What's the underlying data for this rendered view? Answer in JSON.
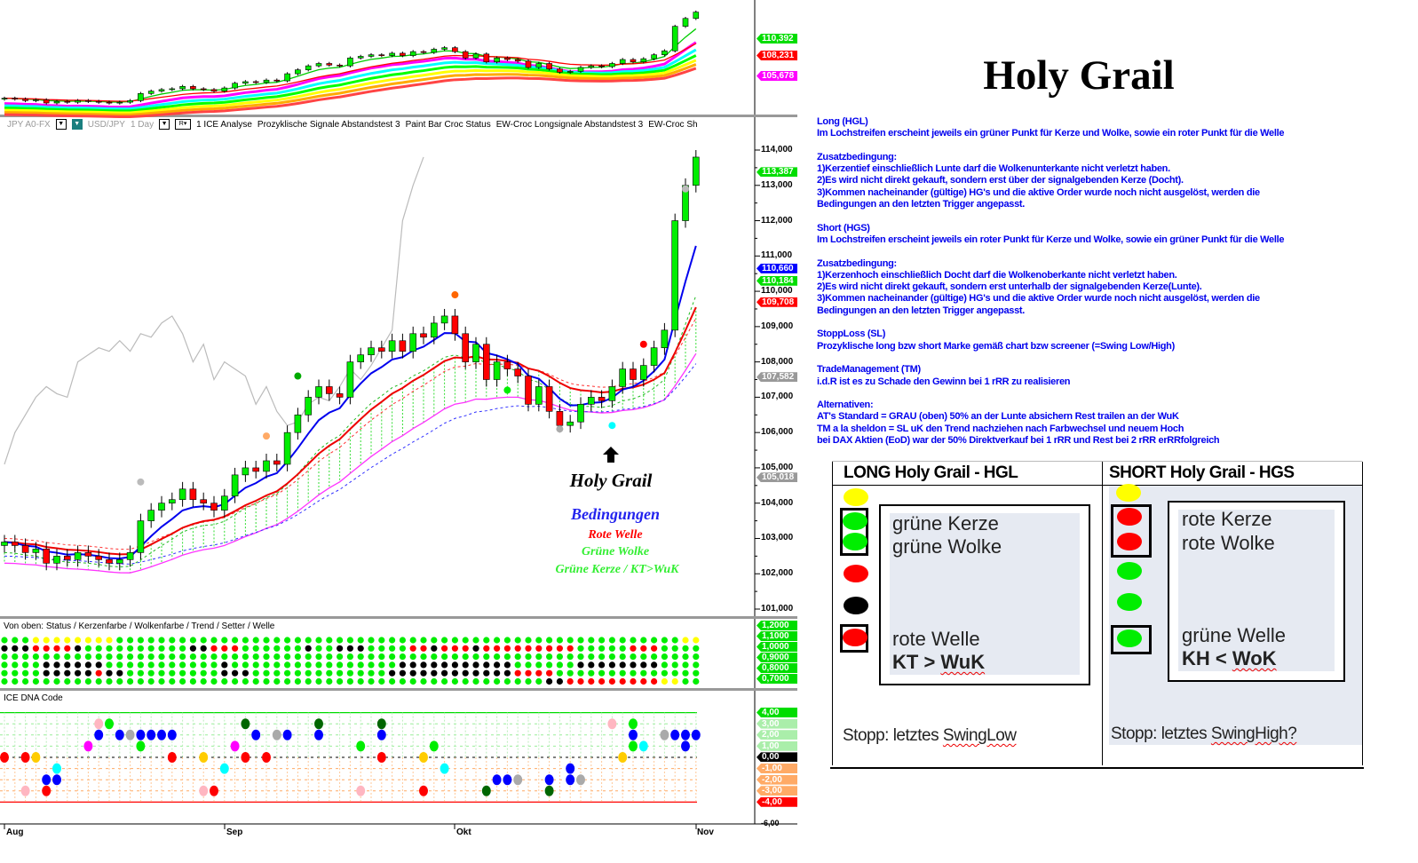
{
  "toolbar": {
    "symbol": "JPY A0-FX",
    "pair": "USD/JPY",
    "interval": "1 Day",
    "r_button": "R",
    "indicators": [
      "1 ICE Analyse",
      "Prozyklische Signale Abstandstest 3",
      "Paint Bar Croc Status",
      "EW-Croc Longsignale Abstandstest 3",
      "EW-Croc Sh"
    ]
  },
  "top_panel": {
    "tags": [
      {
        "label": "110,392",
        "color": "#00dd00"
      },
      {
        "label": "108,231",
        "color": "#ff0000"
      },
      {
        "label": "105,678",
        "color": "#ff00ff"
      }
    ]
  },
  "price_axis": {
    "ticks": [
      "114,000",
      "113,000",
      "112,000",
      "111,000",
      "110,000",
      "109,000",
      "108,000",
      "107,000",
      "106,000",
      "105,000",
      "104,000",
      "103,000",
      "102,000",
      "101,000"
    ],
    "tags": [
      {
        "label": "113,387",
        "color": "#00dd00",
        "value": 113.387
      },
      {
        "label": "110,660",
        "color": "#0000ff",
        "value": 110.66
      },
      {
        "label": "110,184",
        "color": "#00dd00",
        "value": 110.184
      },
      {
        "label": "109,708",
        "color": "#ff0000",
        "value": 109.708
      },
      {
        "label": "107,582",
        "color": "#999999",
        "value": 107.582
      },
      {
        "label": "105,018",
        "color": "#999999",
        "value": 105.018
      }
    ]
  },
  "annotations": {
    "holy_grail": "Holy Grail",
    "bedingungen": "Bedingungen",
    "rote_welle": "Rote Welle",
    "gruene_wolke": "Grüne Wolke",
    "gruene_kerze": "Grüne Kerze / KT>WuK"
  },
  "status_panel": {
    "label": "Von oben: Status / Kerzenfarbe / Wolkenfarbe / Trend / Setter / Welle",
    "tags": [
      "1,2000",
      "1,1000",
      "1,0000",
      "0,9000",
      "0,8000",
      "0,7000"
    ],
    "rows": [
      "gggyyyyyyyyggggggggggggggggggggggggggggggggggggggggggggggggggggggyyg",
      "kkkrrrrkggggggggggkkrrrggggggkggkkkggggrrkrrrkrrrrrrrrrgggggrrrggggg",
      "ggggggggggggggggggggggggggggggggggggggggggggggggggggggggggggggggggg",
      "ggggkkkkkkgggggggggggkggggggggggggggggkkkkkkkkkkkggggggkkkkkkkkgggg",
      "ggggkkkkkrkkgggggggggkkkgggggggggggggkkkkkkkkkkkkrrrrgggggggggggggg",
      "ggggggggggggggggggggggggggggggggggggggggggggggggggggkkrrrrrrrrryygg"
    ],
    "colors": {
      "g": "#00ee00",
      "k": "#000000",
      "r": "#ff0000",
      "y": "#ffff00"
    }
  },
  "dna_panel": {
    "label": "ICE DNA Code",
    "tags": [
      {
        "label": "4,00",
        "color": "#00dd00"
      },
      {
        "label": "3,00",
        "color": "#aaeeaa"
      },
      {
        "label": "2,00",
        "color": "#aaeeaa"
      },
      {
        "label": "1,00",
        "color": "#aaeeaa"
      },
      {
        "label": "0,00",
        "color": "#000000"
      },
      {
        "label": "-1,00",
        "color": "#ffaa66"
      },
      {
        "label": "-2,00",
        "color": "#ffaa66"
      },
      {
        "label": "-3,00",
        "color": "#ffaa66"
      },
      {
        "label": "-4,00",
        "color": "#ff0000"
      }
    ],
    "bottom_tick": "-6,00",
    "dots": [
      [
        9,
        3,
        "#ffb6c1"
      ],
      [
        10,
        3,
        "#00ee00"
      ],
      [
        23,
        3,
        "#006600"
      ],
      [
        30,
        3,
        "#006600"
      ],
      [
        36,
        3,
        "#006600"
      ],
      [
        58,
        3,
        "#ffb6c1"
      ],
      [
        60,
        3,
        "#00ee00"
      ],
      [
        9,
        2,
        "#0000ff"
      ],
      [
        11,
        2,
        "#0000ff"
      ],
      [
        12,
        2,
        "#aaaaaa"
      ],
      [
        13,
        2,
        "#0000ff"
      ],
      [
        14,
        2,
        "#0000ff"
      ],
      [
        15,
        2,
        "#0000ff"
      ],
      [
        16,
        2,
        "#0000ff"
      ],
      [
        24,
        2,
        "#0000ff"
      ],
      [
        26,
        2,
        "#aaaaaa"
      ],
      [
        27,
        2,
        "#0000ff"
      ],
      [
        30,
        2,
        "#0000ff"
      ],
      [
        36,
        2,
        "#0000ff"
      ],
      [
        60,
        2,
        "#0000ff"
      ],
      [
        63,
        2,
        "#aaaaaa"
      ],
      [
        64,
        2,
        "#0000ff"
      ],
      [
        65,
        2,
        "#0000ff"
      ],
      [
        66,
        2,
        "#0000ff"
      ],
      [
        8,
        1,
        "#ff00ff"
      ],
      [
        13,
        1,
        "#00ee00"
      ],
      [
        22,
        1,
        "#ff00ff"
      ],
      [
        34,
        1,
        "#00ee00"
      ],
      [
        41,
        1,
        "#00ee00"
      ],
      [
        60,
        1,
        "#00ee00"
      ],
      [
        61,
        1,
        "#00ffff"
      ],
      [
        65,
        1,
        "#0000ff"
      ],
      [
        0,
        0,
        "#ff0000"
      ],
      [
        2,
        0,
        "#ff0000"
      ],
      [
        3,
        0,
        "#ffcc00"
      ],
      [
        16,
        0,
        "#ff0000"
      ],
      [
        19,
        0,
        "#ffcc00"
      ],
      [
        23,
        0,
        "#ff0000"
      ],
      [
        25,
        0,
        "#ff0000"
      ],
      [
        36,
        0,
        "#ff0000"
      ],
      [
        40,
        0,
        "#ffcc00"
      ],
      [
        59,
        0,
        "#ffcc00"
      ],
      [
        5,
        -1,
        "#00ffff"
      ],
      [
        21,
        -1,
        "#00ffff"
      ],
      [
        42,
        -1,
        "#00ffff"
      ],
      [
        54,
        -1,
        "#0000ff"
      ],
      [
        4,
        -2,
        "#0000ff"
      ],
      [
        5,
        -2,
        "#0000ff"
      ],
      [
        47,
        -2,
        "#0000ff"
      ],
      [
        48,
        -2,
        "#0000ff"
      ],
      [
        49,
        -2,
        "#aaaaaa"
      ],
      [
        52,
        -2,
        "#0000ff"
      ],
      [
        54,
        -2,
        "#0000ff"
      ],
      [
        55,
        -2,
        "#aaaaaa"
      ],
      [
        2,
        -3,
        "#ffb6c1"
      ],
      [
        4,
        -3,
        "#ff0000"
      ],
      [
        19,
        -3,
        "#ffb6c1"
      ],
      [
        20,
        -3,
        "#ff0000"
      ],
      [
        34,
        -3,
        "#ffb6c1"
      ],
      [
        40,
        -3,
        "#ff0000"
      ],
      [
        46,
        -3,
        "#006600"
      ],
      [
        52,
        -3,
        "#006600"
      ]
    ]
  },
  "x_axis": {
    "labels": [
      "Aug",
      "Sep",
      "Okt",
      "Nov"
    ]
  },
  "chart_data": {
    "type": "candlestick",
    "title": "",
    "symbol": "USD/JPY",
    "interval": "1 Day",
    "ylim": [
      101,
      114
    ],
    "month_start_index": {
      "Aug": 0,
      "Sep": 21,
      "Okt": 43,
      "Nov": 66
    },
    "close": [
      102.9,
      102.8,
      102.6,
      102.7,
      102.3,
      102.5,
      102.4,
      102.6,
      102.5,
      102.4,
      102.3,
      102.4,
      102.6,
      103.5,
      103.8,
      104.0,
      104.1,
      104.4,
      104.1,
      104.0,
      103.8,
      104.2,
      104.8,
      105.0,
      104.9,
      105.2,
      105.1,
      106.0,
      106.5,
      107.0,
      107.3,
      107.1,
      107.0,
      108.0,
      108.2,
      108.4,
      108.3,
      108.6,
      108.3,
      108.8,
      108.7,
      109.1,
      109.3,
      108.8,
      108.0,
      108.5,
      107.5,
      108.0,
      107.8,
      107.6,
      106.8,
      107.3,
      106.6,
      106.2,
      106.3,
      106.8,
      107.0,
      106.9,
      107.3,
      107.8,
      107.5,
      107.9,
      108.4,
      108.9,
      112.0,
      113.0,
      113.8
    ]
  },
  "right": {
    "title": "Holy Grail",
    "sections": [
      [
        "Long (HGL)",
        "Im Lochstreifen erscheint jeweils ein grüner Punkt für Kerze und Wolke, sowie ein roter Punkt für die Welle"
      ],
      [
        "Zusatzbedingung:",
        "1)Kerzentief einschließlich Lunte darf die Wolkenunterkante nicht verletzt haben.",
        "2)Es wird nicht direkt gekauft, sondern erst über der signalgebenden Kerze (Docht).",
        "3)Kommen nacheinander (gültige) HG's und die aktive Order wurde noch nicht ausgelöst, werden   die",
        "Bedingungen an den letzten Trigger angepasst."
      ],
      [
        "Short (HGS)",
        "Im Lochstreifen erscheint jeweils ein roter Punkt für Kerze und Wolke, sowie ein grüner Punkt für die Welle"
      ],
      [
        "Zusatzbedingung:",
        "1)Kerzenhoch einschließlich Docht darf die Wolkenoberkante nicht verletzt haben.",
        "2)Es wird nicht direkt gekauft, sondern erst unterhalb der signalgebenden Kerze(Lunte).",
        "3)Kommen nacheinander (gültige) HG's und die aktive Order wurde noch nicht ausgelöst, werden   die",
        "Bedingungen an den letzten Trigger angepasst."
      ],
      [
        "StoppLoss (SL)",
        "Prozyklische long bzw short Marke  gemäß chart bzw screener  (=Swing Low/High)"
      ],
      [
        "TradeManagement (TM)",
        "i.d.R ist es zu Schade den Gewinn bei 1 rRR zu realisieren"
      ],
      [
        "Alternativen:",
        "AT's Standard = GRAU (oben) 50% an der Lunte absichern Rest trailen an der WuK",
        "TM a la sheldon = SL uK den Trend nachziehen nach Farbwechsel und neuem Hoch",
        "bei DAX Aktien (EoD) war der 50% Direktverkauf bei 1 rRR und Rest bei 2 rRR erRRfolgreich"
      ]
    ],
    "table": {
      "long": {
        "header": "LONG Holy Grail - HGL",
        "line1": "grüne Kerze",
        "line2": "grüne Wolke",
        "line3": "rote Welle",
        "cond_a": "KT > ",
        "cond_b": "WuK",
        "stop_a": "Stopp: letztes ",
        "stop_b": "SwingLow"
      },
      "short": {
        "header": "SHORT Holy Grail - HGS",
        "line1": "rote Kerze",
        "line2": "rote Wolke",
        "line3": "grüne Welle",
        "cond_a": "KH < ",
        "cond_b": "WoK",
        "stop_a": "Stopp: letztes ",
        "stop_b": "SwingHigh?"
      }
    },
    "colors": {
      "text": "#0000ee",
      "yellow": "#ffff00",
      "green": "#00ee00",
      "red": "#ff0000",
      "black": "#000000"
    }
  }
}
